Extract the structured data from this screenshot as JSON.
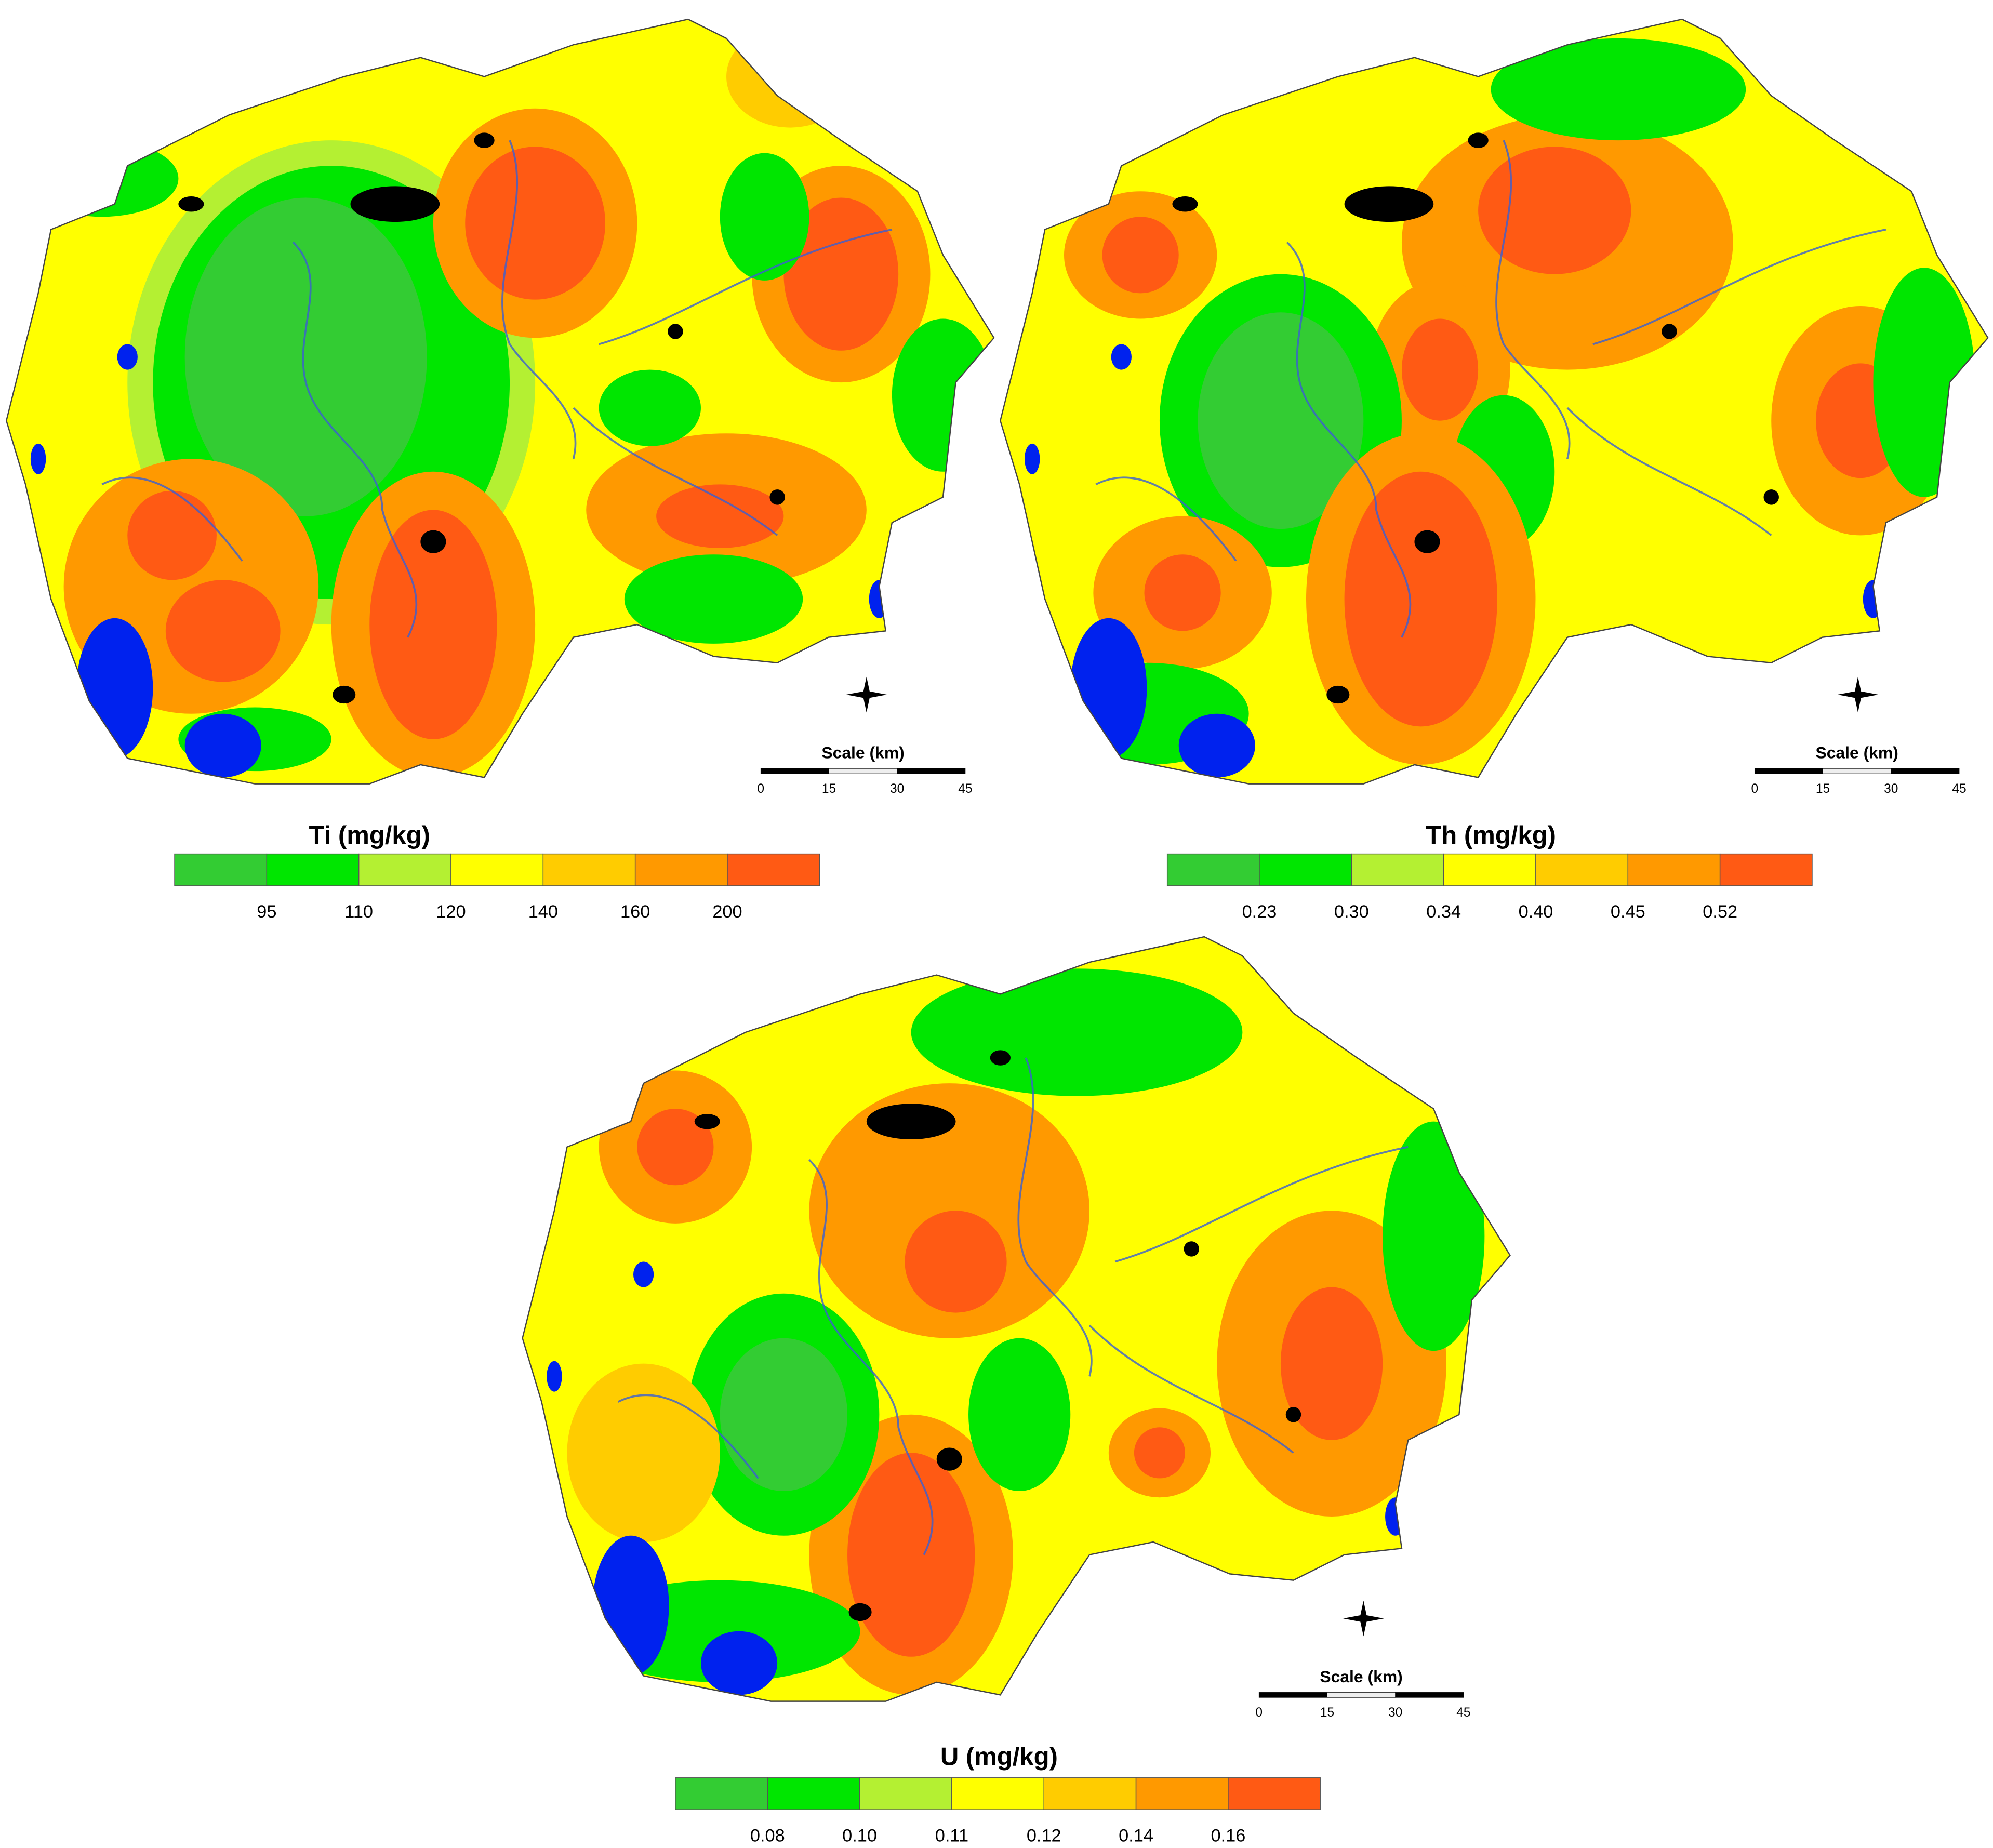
{
  "maps": [
    {
      "title": "Ti (mg/kg)",
      "legend": {
        "colors": [
          "#33cc33",
          "#00e600",
          "#b4f032",
          "#ffff00",
          "#ffcc00",
          "#ff9900",
          "#ff5a14"
        ],
        "labels": [
          "95",
          "110",
          "120",
          "140",
          "160",
          "200"
        ]
      },
      "scale": {
        "title": "Scale (km)",
        "labels": [
          "0",
          "15",
          "30",
          "45"
        ]
      }
    },
    {
      "title": "Th (mg/kg)",
      "legend": {
        "colors": [
          "#33cc33",
          "#00e600",
          "#b4f032",
          "#ffff00",
          "#ffcc00",
          "#ff9900",
          "#ff5a14"
        ],
        "labels": [
          "0.23",
          "0.30",
          "0.34",
          "0.40",
          "0.45",
          "0.52"
        ]
      },
      "scale": {
        "title": "Scale (km)",
        "labels": [
          "0",
          "15",
          "30",
          "45"
        ]
      }
    },
    {
      "title": "U (mg/kg)",
      "legend": {
        "colors": [
          "#33cc33",
          "#00e600",
          "#b4f032",
          "#ffff00",
          "#ffcc00",
          "#ff9900",
          "#ff5a14"
        ],
        "labels": [
          "0.08",
          "0.10",
          "0.11",
          "0.12",
          "0.14",
          "0.16"
        ]
      },
      "scale": {
        "title": "Scale (km)",
        "labels": [
          "0",
          "15",
          "30",
          "45"
        ]
      }
    }
  ]
}
